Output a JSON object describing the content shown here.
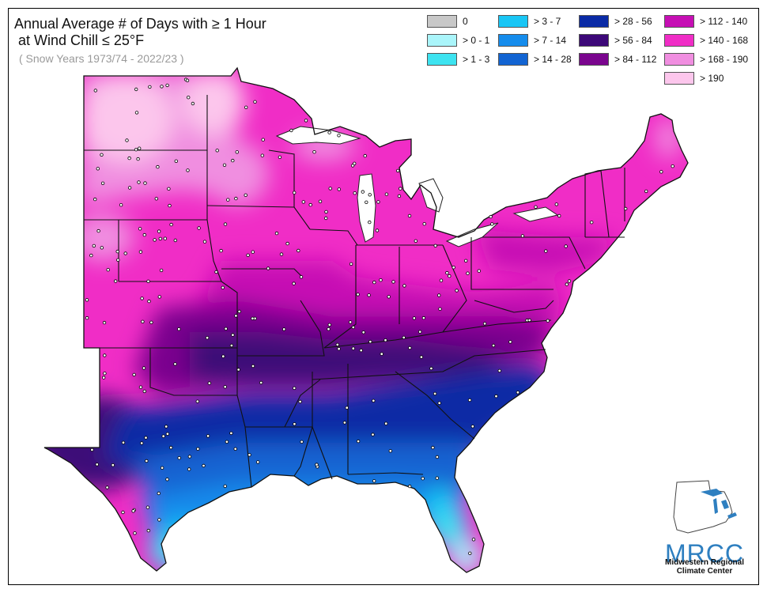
{
  "title_line1": "Annual Average # of Days with ≥ 1 Hour",
  "title_line2": " at Wind Chill ≤ 25°F",
  "subtitle": "( Snow Years 1973/74 - 2022/23 )",
  "legend": [
    {
      "label": "0",
      "color": "#c8c8c8"
    },
    {
      "label": "> 0 - 1",
      "color": "#aaf5fa"
    },
    {
      "label": "> 1 - 3",
      "color": "#3de3f0"
    },
    {
      "label": "> 3 - 7",
      "color": "#19c6f5"
    },
    {
      "label": "> 7 - 14",
      "color": "#158cec"
    },
    {
      "label": "> 14 - 28",
      "color": "#1264d2"
    },
    {
      "label": "> 28 - 56",
      "color": "#0a2aa5"
    },
    {
      "label": "> 56 - 84",
      "color": "#3c0878"
    },
    {
      "label": "> 84 - 112",
      "color": "#7a058e"
    },
    {
      "label": "> 112 - 140",
      "color": "#c60fb4"
    },
    {
      "label": "> 140 - 168",
      "color": "#f02dc6"
    },
    {
      "label": "> 168 - 190",
      "color": "#f08ee0"
    },
    {
      "label": "> 190",
      "color": "#fcc6ec"
    }
  ],
  "logo": {
    "name": "MRCC",
    "line1": "Midwestern Regional",
    "line2": "Climate Center"
  }
}
